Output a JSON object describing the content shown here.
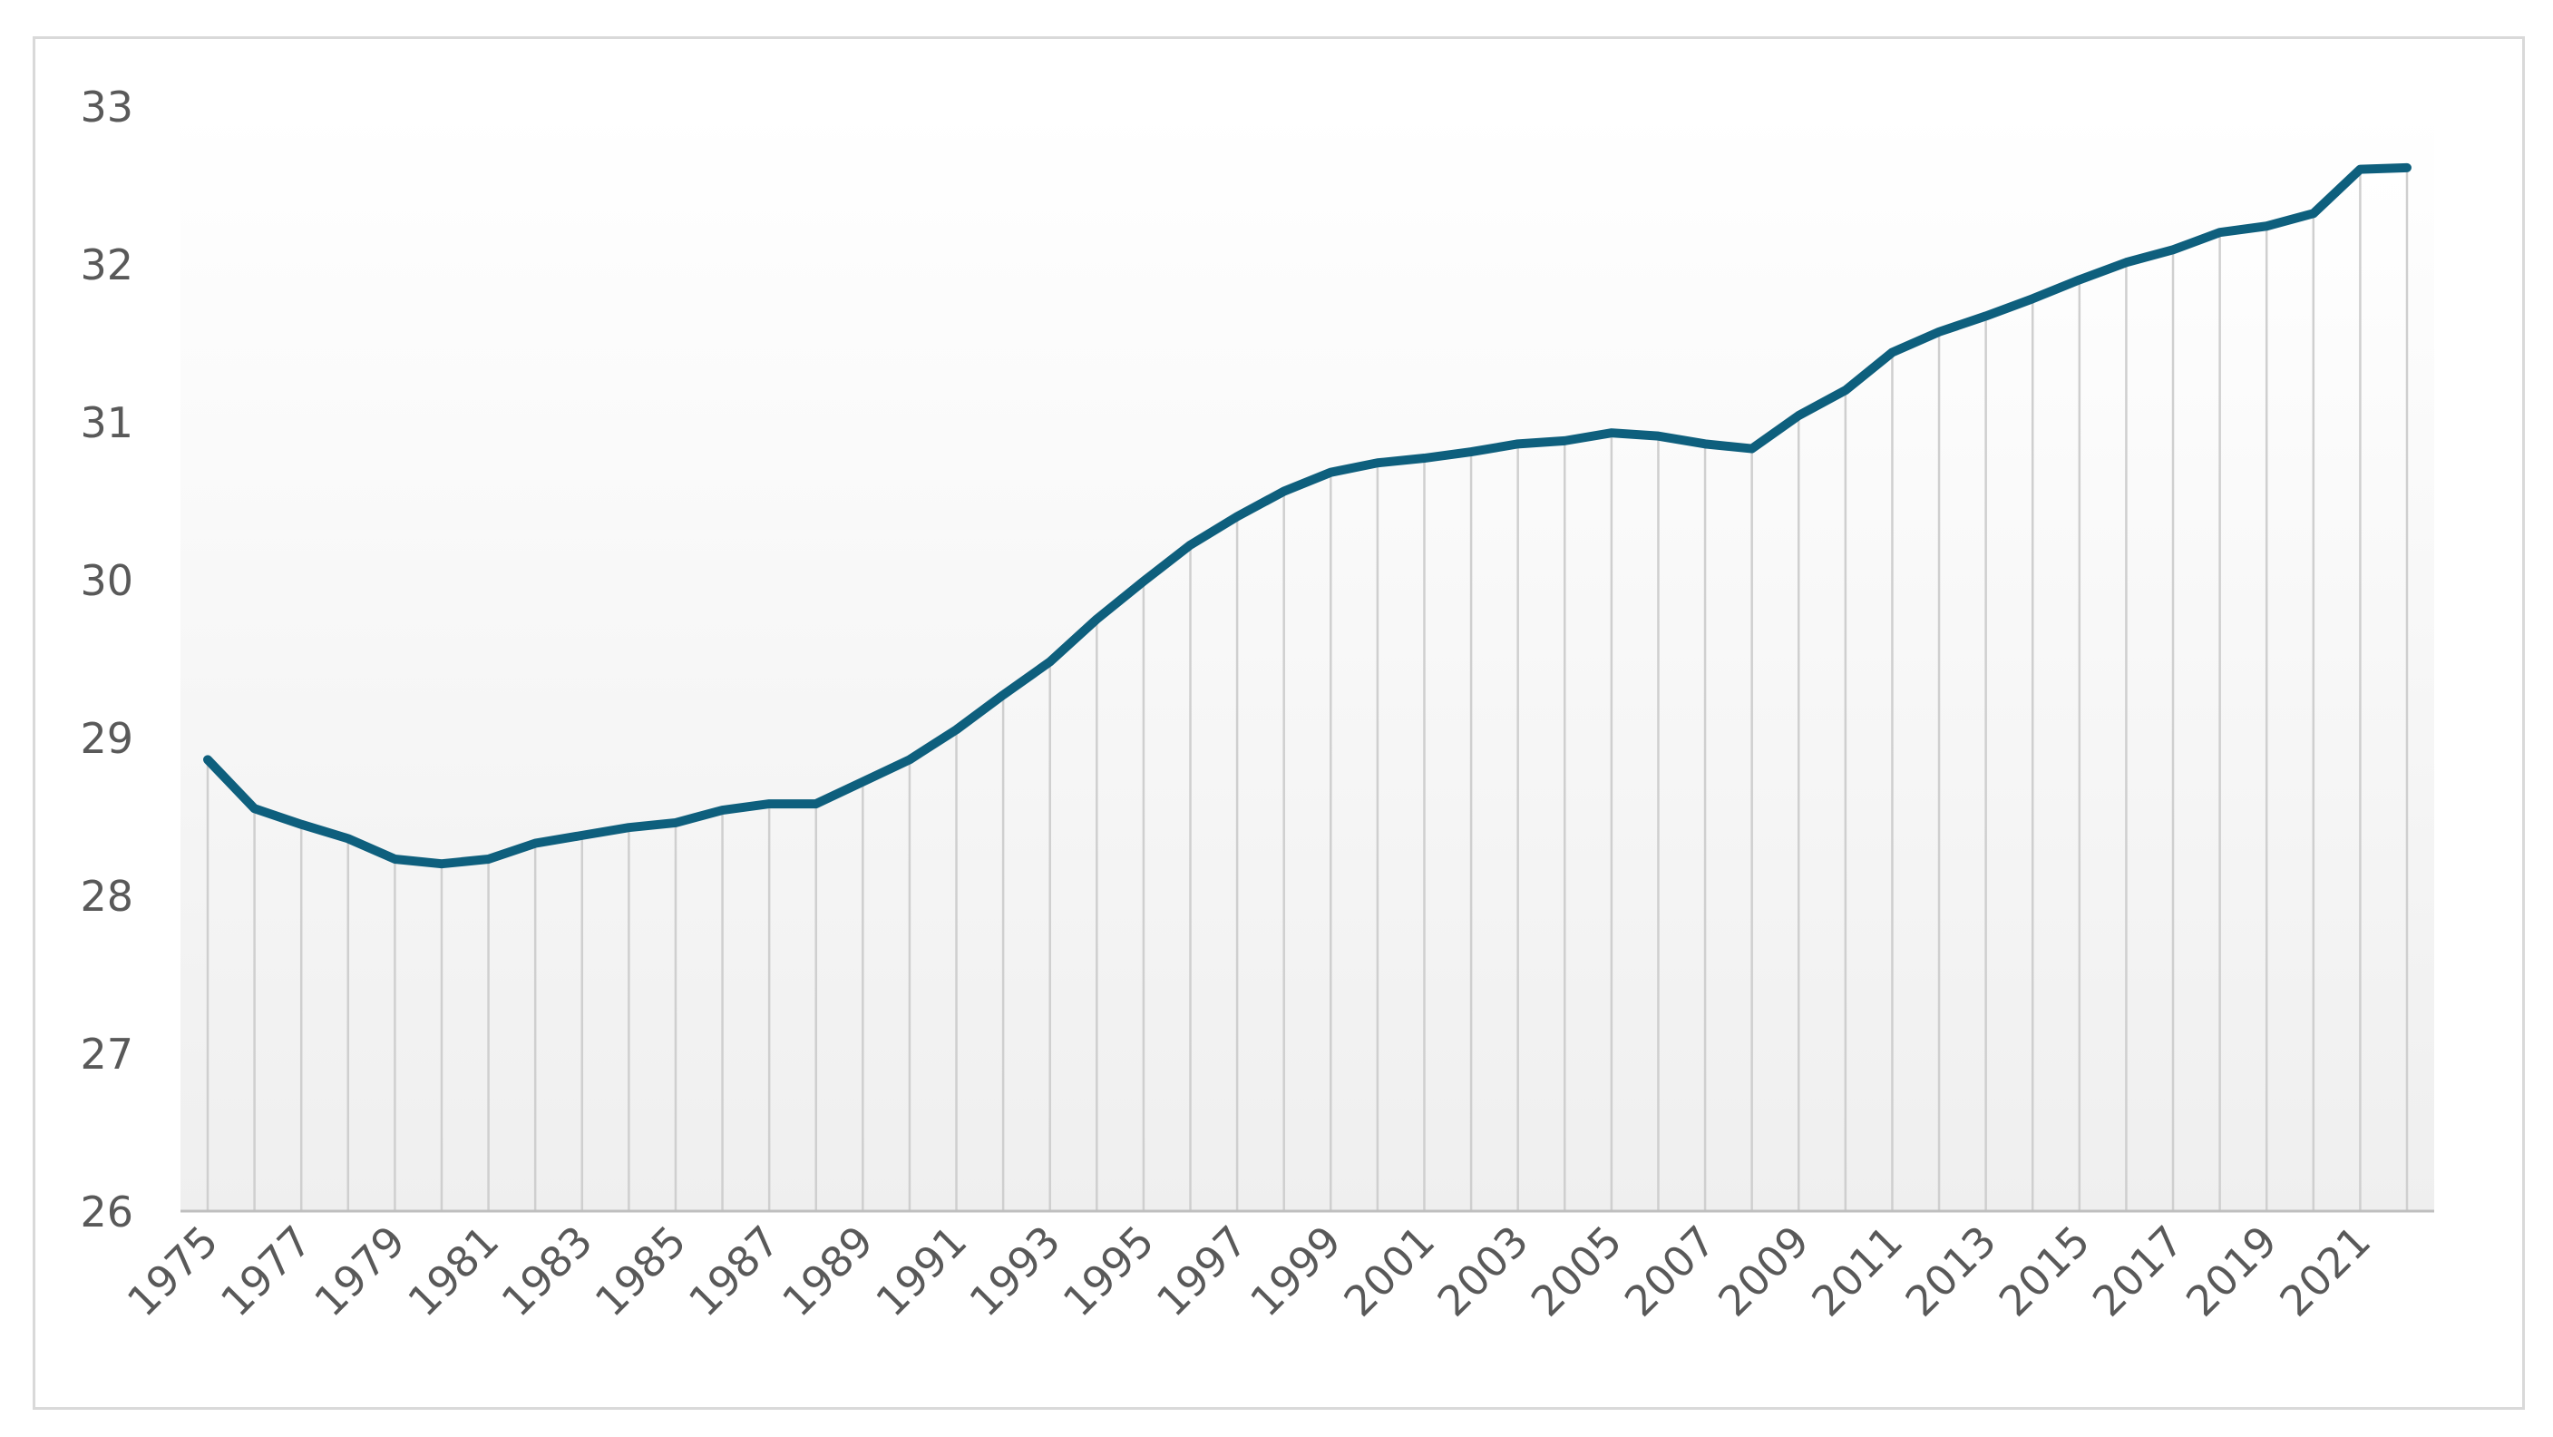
{
  "chart_data": {
    "type": "area",
    "title": "",
    "xlabel": "",
    "ylabel": "",
    "ylim": [
      26,
      33
    ],
    "yticks": [
      26,
      27,
      28,
      29,
      30,
      31,
      32,
      33
    ],
    "grid": "vertical drop lines at each year",
    "legend": "none",
    "x_tick_labels": [
      "1975",
      "1977",
      "1979",
      "1981",
      "1983",
      "1985",
      "1987",
      "1989",
      "1991",
      "1993",
      "1995",
      "1997",
      "1999",
      "2001",
      "2003",
      "2005",
      "2007",
      "2009",
      "2011",
      "2013",
      "2015",
      "2017",
      "2019",
      "2021"
    ],
    "x": [
      1975,
      1976,
      1977,
      1978,
      1979,
      1980,
      1981,
      1982,
      1983,
      1984,
      1985,
      1986,
      1987,
      1988,
      1989,
      1990,
      1991,
      1992,
      1993,
      1994,
      1995,
      1996,
      1997,
      1998,
      1999,
      2000,
      2001,
      2002,
      2003,
      2004,
      2005,
      2006,
      2007,
      2008,
      2009,
      2010,
      2011,
      2012,
      2013,
      2014,
      2015,
      2016,
      2017,
      2018,
      2019,
      2020,
      2021,
      2022
    ],
    "series": [
      {
        "values": [
          28.86,
          28.55,
          28.45,
          28.36,
          28.23,
          28.2,
          28.23,
          28.33,
          28.38,
          28.43,
          28.46,
          28.54,
          28.58,
          28.58,
          28.72,
          28.86,
          29.05,
          29.27,
          29.48,
          29.75,
          29.99,
          30.22,
          30.4,
          30.56,
          30.68,
          30.74,
          30.77,
          30.81,
          30.86,
          30.88,
          30.93,
          30.91,
          30.86,
          30.83,
          31.04,
          31.2,
          31.44,
          31.57,
          31.67,
          31.78,
          31.9,
          32.01,
          32.09,
          32.2,
          32.24,
          32.32,
          32.6,
          32.61
        ]
      }
    ],
    "colors": {
      "line": "#0e5f7d",
      "drop_lines": "#cfcfcf",
      "area_top": "#ffffff",
      "area_bottom": "#efefef",
      "axis": "#bfbfbf",
      "tick_text": "#595959"
    }
  }
}
